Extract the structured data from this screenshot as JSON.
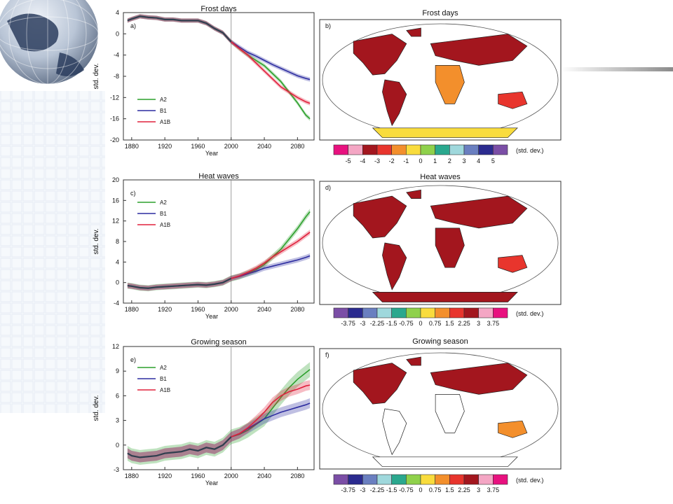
{
  "chart_data": [
    {
      "type": "line",
      "panel_label": "a)",
      "title": "Frost days",
      "xlabel": "Year",
      "ylabel": "std. dev.",
      "xlim": [
        1870,
        2100
      ],
      "ylim": [
        -20,
        4
      ],
      "xticks": [
        1880,
        1920,
        1960,
        2000,
        2040,
        2080
      ],
      "yticks": [
        -20,
        -16,
        -12,
        -8,
        -4,
        0,
        4
      ],
      "vline": 2000,
      "legend": "left-middle",
      "series": [
        {
          "name": "A2",
          "color": "#2ca02c",
          "x": [
            1875,
            1880,
            1890,
            1900,
            1910,
            1920,
            1930,
            1940,
            1950,
            1960,
            1970,
            1980,
            1990,
            2000,
            2010,
            2020,
            2030,
            2040,
            2050,
            2060,
            2070,
            2080,
            2090,
            2095
          ],
          "y": [
            2.5,
            2.8,
            3.3,
            3.1,
            3.0,
            2.7,
            2.7,
            2.5,
            2.5,
            2.5,
            2.0,
            1.0,
            0.2,
            -1.5,
            -2.8,
            -4.0,
            -5.0,
            -6.0,
            -7.5,
            -9.0,
            -11.0,
            -13.0,
            -15.3,
            -16.0
          ],
          "band": 0.4
        },
        {
          "name": "B1",
          "color": "#2c2ca0",
          "x": [
            1875,
            1880,
            1890,
            1900,
            1910,
            1920,
            1930,
            1940,
            1950,
            1960,
            1970,
            1980,
            1990,
            2000,
            2010,
            2020,
            2030,
            2040,
            2050,
            2060,
            2070,
            2080,
            2090,
            2095
          ],
          "y": [
            2.5,
            2.8,
            3.3,
            3.1,
            3.0,
            2.7,
            2.7,
            2.5,
            2.5,
            2.5,
            2.0,
            1.0,
            0.2,
            -1.5,
            -2.5,
            -3.5,
            -4.2,
            -5.0,
            -5.8,
            -6.5,
            -7.2,
            -7.9,
            -8.4,
            -8.6
          ],
          "band": 0.4
        },
        {
          "name": "A1B",
          "color": "#e0203c",
          "x": [
            1875,
            1880,
            1890,
            1900,
            1910,
            1920,
            1930,
            1940,
            1950,
            1960,
            1970,
            1980,
            1990,
            2000,
            2010,
            2020,
            2030,
            2040,
            2050,
            2060,
            2070,
            2080,
            2090,
            2095
          ],
          "y": [
            2.5,
            2.8,
            3.3,
            3.1,
            3.0,
            2.7,
            2.7,
            2.5,
            2.5,
            2.5,
            2.0,
            1.0,
            0.2,
            -1.5,
            -2.8,
            -4.0,
            -5.5,
            -7.0,
            -8.5,
            -10.0,
            -11.0,
            -12.0,
            -12.8,
            -13.1
          ],
          "band": 0.4
        }
      ]
    },
    {
      "type": "line",
      "panel_label": "c)",
      "title": "Heat waves",
      "xlabel": "Year",
      "ylabel": "std. dev.",
      "xlim": [
        1870,
        2100
      ],
      "ylim": [
        -4,
        20
      ],
      "xticks": [
        1880,
        1920,
        1960,
        2000,
        2040,
        2080
      ],
      "yticks": [
        -4,
        0,
        4,
        8,
        12,
        16,
        20
      ],
      "vline": 2000,
      "legend": "top-left",
      "series": [
        {
          "name": "A2",
          "color": "#2ca02c",
          "x": [
            1875,
            1880,
            1890,
            1900,
            1910,
            1920,
            1930,
            1940,
            1950,
            1960,
            1970,
            1980,
            1990,
            2000,
            2010,
            2020,
            2030,
            2040,
            2050,
            2060,
            2070,
            2080,
            2090,
            2095
          ],
          "y": [
            -0.6,
            -0.7,
            -1.0,
            -1.1,
            -0.9,
            -0.8,
            -0.7,
            -0.6,
            -0.5,
            -0.4,
            -0.5,
            -0.3,
            0.0,
            0.8,
            1.2,
            1.8,
            2.5,
            3.5,
            5.0,
            6.5,
            8.5,
            10.5,
            12.8,
            13.8
          ],
          "band": 0.6
        },
        {
          "name": "B1",
          "color": "#2c2ca0",
          "x": [
            1875,
            1880,
            1890,
            1900,
            1910,
            1920,
            1930,
            1940,
            1950,
            1960,
            1970,
            1980,
            1990,
            2000,
            2010,
            2020,
            2030,
            2040,
            2050,
            2060,
            2070,
            2080,
            2090,
            2095
          ],
          "y": [
            -0.6,
            -0.7,
            -1.0,
            -1.1,
            -0.9,
            -0.8,
            -0.7,
            -0.6,
            -0.5,
            -0.4,
            -0.5,
            -0.3,
            0.0,
            0.8,
            1.2,
            1.7,
            2.2,
            2.8,
            3.2,
            3.6,
            4.0,
            4.4,
            4.9,
            5.2
          ],
          "band": 0.5
        },
        {
          "name": "A1B",
          "color": "#e0203c",
          "x": [
            1875,
            1880,
            1890,
            1900,
            1910,
            1920,
            1930,
            1940,
            1950,
            1960,
            1970,
            1980,
            1990,
            2000,
            2010,
            2020,
            2030,
            2040,
            2050,
            2060,
            2070,
            2080,
            2090,
            2095
          ],
          "y": [
            -0.6,
            -0.7,
            -1.0,
            -1.1,
            -0.9,
            -0.8,
            -0.7,
            -0.6,
            -0.5,
            -0.4,
            -0.5,
            -0.3,
            0.0,
            0.8,
            1.3,
            2.0,
            2.8,
            3.8,
            5.0,
            6.0,
            7.0,
            8.0,
            9.2,
            9.8
          ],
          "band": 0.5
        }
      ]
    },
    {
      "type": "line",
      "panel_label": "e)",
      "title": "Growing season",
      "xlabel": "Year",
      "ylabel": "std. dev.",
      "xlim": [
        1870,
        2100
      ],
      "ylim": [
        -3,
        12
      ],
      "xticks": [
        1880,
        1920,
        1960,
        2000,
        2040,
        2080
      ],
      "yticks": [
        -3,
        0,
        3,
        6,
        9,
        12
      ],
      "vline": 2000,
      "legend": "top-left",
      "series": [
        {
          "name": "A2",
          "color": "#2ca02c",
          "x": [
            1875,
            1880,
            1890,
            1900,
            1910,
            1920,
            1930,
            1940,
            1950,
            1960,
            1970,
            1980,
            1990,
            2000,
            2010,
            2020,
            2030,
            2040,
            2050,
            2060,
            2070,
            2080,
            2090,
            2095
          ],
          "y": [
            -1.0,
            -1.3,
            -1.5,
            -1.4,
            -1.3,
            -1.0,
            -0.9,
            -0.8,
            -0.5,
            -0.7,
            -0.3,
            -0.5,
            0.0,
            1.0,
            1.3,
            1.8,
            2.5,
            3.2,
            4.5,
            5.8,
            7.0,
            8.0,
            8.8,
            9.2
          ],
          "band": 0.9
        },
        {
          "name": "B1",
          "color": "#2c2ca0",
          "x": [
            1875,
            1880,
            1890,
            1900,
            1910,
            1920,
            1930,
            1940,
            1950,
            1960,
            1970,
            1980,
            1990,
            2000,
            2010,
            2020,
            2030,
            2040,
            2050,
            2060,
            2070,
            2080,
            2090,
            2095
          ],
          "y": [
            -1.0,
            -1.3,
            -1.5,
            -1.4,
            -1.3,
            -1.0,
            -0.9,
            -0.8,
            -0.5,
            -0.7,
            -0.3,
            -0.5,
            0.0,
            1.0,
            1.4,
            2.0,
            2.6,
            3.2,
            3.6,
            4.0,
            4.3,
            4.6,
            4.9,
            5.1
          ],
          "band": 0.6
        },
        {
          "name": "A1B",
          "color": "#e0203c",
          "x": [
            1875,
            1880,
            1890,
            1900,
            1910,
            1920,
            1930,
            1940,
            1950,
            1960,
            1970,
            1980,
            1990,
            2000,
            2010,
            2020,
            2030,
            2040,
            2050,
            2060,
            2070,
            2080,
            2090,
            2095
          ],
          "y": [
            -1.0,
            -1.3,
            -1.5,
            -1.4,
            -1.3,
            -1.0,
            -0.9,
            -0.8,
            -0.5,
            -0.7,
            -0.3,
            -0.5,
            0.0,
            1.0,
            1.4,
            2.1,
            3.0,
            4.0,
            5.2,
            6.0,
            6.5,
            6.8,
            7.2,
            7.3
          ],
          "band": 0.6
        }
      ]
    }
  ],
  "maps": [
    {
      "panel_label": "b)",
      "title": "Frost days",
      "colorbar": {
        "labels": [
          "-5",
          "-4",
          "-3",
          "-2",
          "-1",
          "0",
          "1",
          "2",
          "3",
          "4",
          "5"
        ],
        "unit": "(std. dev.)",
        "colors": [
          "#e8117f",
          "#f4a6c4",
          "#a3161e",
          "#e8352d",
          "#f38f2c",
          "#f9dc3d",
          "#8fd14b",
          "#2aa88e",
          "#9fd8dc",
          "#6a7fc0",
          "#2b2b8f",
          "#7b4ea6"
        ]
      }
    },
    {
      "panel_label": "d)",
      "title": "Heat waves",
      "colorbar": {
        "labels": [
          "-3.75",
          "-3",
          "-2.25",
          "-1.5",
          "-0.75",
          "0",
          "0.75",
          "1.5",
          "2.25",
          "3",
          "3.75"
        ],
        "unit": "(std. dev.)",
        "colors": [
          "#7b4ea6",
          "#2b2b8f",
          "#6a7fc0",
          "#9fd8dc",
          "#2aa88e",
          "#8fd14b",
          "#f9dc3d",
          "#f38f2c",
          "#e8352d",
          "#a3161e",
          "#f4a6c4",
          "#e8117f"
        ]
      }
    },
    {
      "panel_label": "f)",
      "title": "Growing season",
      "colorbar": {
        "labels": [
          "-3.75",
          "-3",
          "-2.25",
          "-1.5",
          "-0.75",
          "0",
          "0.75",
          "1.5",
          "2.25",
          "3",
          "3.75"
        ],
        "unit": "(std. dev.)",
        "colors": [
          "#7b4ea6",
          "#2b2b8f",
          "#6a7fc0",
          "#9fd8dc",
          "#2aa88e",
          "#8fd14b",
          "#f9dc3d",
          "#f38f2c",
          "#e8352d",
          "#a3161e",
          "#f4a6c4",
          "#e8117f"
        ]
      }
    }
  ]
}
